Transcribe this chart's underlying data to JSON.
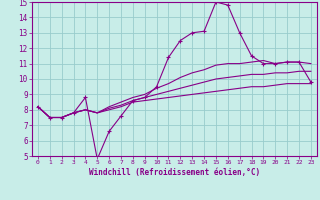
{
  "background_color": "#c8ede8",
  "plot_bg_color": "#c8ede8",
  "line_color": "#880088",
  "grid_color": "#99cccc",
  "spine_color": "#880088",
  "xlabel": "Windchill (Refroidissement éolien,°C)",
  "xlim": [
    -0.5,
    23.5
  ],
  "ylim": [
    5,
    15
  ],
  "xticks": [
    0,
    1,
    2,
    3,
    4,
    5,
    6,
    7,
    8,
    9,
    10,
    11,
    12,
    13,
    14,
    15,
    16,
    17,
    18,
    19,
    20,
    21,
    22,
    23
  ],
  "yticks": [
    5,
    6,
    7,
    8,
    9,
    10,
    11,
    12,
    13,
    14,
    15
  ],
  "series": [
    {
      "x": [
        0,
        1,
        2,
        3,
        4,
        5,
        6,
        7,
        8,
        9,
        10,
        11,
        12,
        13,
        14,
        15,
        16,
        17,
        18,
        19,
        20,
        21,
        22,
        23
      ],
      "y": [
        8.2,
        7.5,
        7.5,
        7.8,
        8.8,
        4.8,
        6.6,
        7.6,
        8.6,
        8.8,
        9.5,
        11.4,
        12.5,
        13.0,
        13.1,
        15.0,
        14.8,
        13.0,
        11.5,
        11.0,
        11.0,
        11.1,
        11.1,
        9.8
      ],
      "marker": "+"
    },
    {
      "x": [
        0,
        1,
        2,
        3,
        4,
        5,
        6,
        7,
        8,
        9,
        10,
        11,
        12,
        13,
        14,
        15,
        16,
        17,
        18,
        19,
        20,
        21,
        22,
        23
      ],
      "y": [
        8.2,
        7.5,
        7.5,
        7.8,
        8.0,
        7.8,
        8.0,
        8.2,
        8.5,
        8.6,
        8.7,
        8.8,
        8.9,
        9.0,
        9.1,
        9.2,
        9.3,
        9.4,
        9.5,
        9.5,
        9.6,
        9.7,
        9.7,
        9.7
      ],
      "marker": null
    },
    {
      "x": [
        0,
        1,
        2,
        3,
        4,
        5,
        6,
        7,
        8,
        9,
        10,
        11,
        12,
        13,
        14,
        15,
        16,
        17,
        18,
        19,
        20,
        21,
        22,
        23
      ],
      "y": [
        8.2,
        7.5,
        7.5,
        7.8,
        8.0,
        7.8,
        8.1,
        8.3,
        8.6,
        8.8,
        9.0,
        9.2,
        9.4,
        9.6,
        9.8,
        10.0,
        10.1,
        10.2,
        10.3,
        10.3,
        10.4,
        10.4,
        10.5,
        10.5
      ],
      "marker": null
    },
    {
      "x": [
        0,
        1,
        2,
        3,
        4,
        5,
        6,
        7,
        8,
        9,
        10,
        11,
        12,
        13,
        14,
        15,
        16,
        17,
        18,
        19,
        20,
        21,
        22,
        23
      ],
      "y": [
        8.2,
        7.5,
        7.5,
        7.8,
        8.0,
        7.8,
        8.2,
        8.5,
        8.8,
        9.0,
        9.4,
        9.7,
        10.1,
        10.4,
        10.6,
        10.9,
        11.0,
        11.0,
        11.1,
        11.2,
        11.0,
        11.1,
        11.1,
        11.0
      ],
      "marker": null
    }
  ]
}
